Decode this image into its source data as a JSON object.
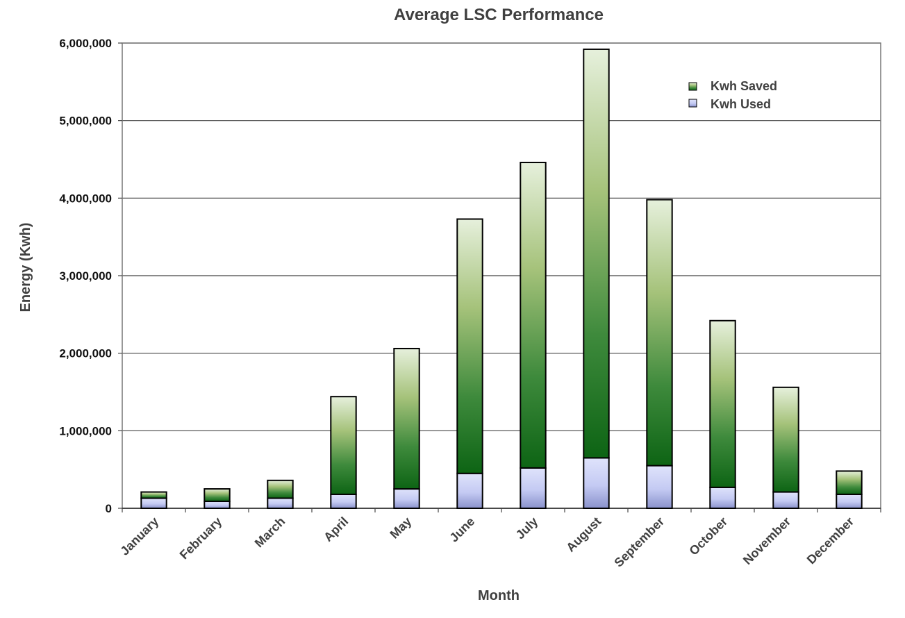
{
  "chart_data": {
    "type": "bar",
    "stacked": true,
    "title": "Average LSC Performance",
    "xlabel": "Month",
    "ylabel": "Energy (Kwh)",
    "ylim": [
      0,
      6000000
    ],
    "yticks": [
      0,
      1000000,
      2000000,
      3000000,
      4000000,
      5000000,
      6000000
    ],
    "ytick_labels": [
      "0",
      "1,000,000",
      "2,000,000",
      "3,000,000",
      "4,000,000",
      "5,000,000",
      "6,000,000"
    ],
    "grid": "horizontal",
    "legend_position": "top-right",
    "categories": [
      "January",
      "February",
      "March",
      "April",
      "May",
      "June",
      "July",
      "August",
      "September",
      "October",
      "November",
      "December"
    ],
    "series": [
      {
        "name": "Kwh Used",
        "color": "#c8cdf5",
        "values": [
          130000,
          90000,
          130000,
          180000,
          250000,
          450000,
          520000,
          650000,
          550000,
          270000,
          210000,
          180000
        ]
      },
      {
        "name": "Kwh Saved",
        "color": "#2e8b2e",
        "values": [
          80000,
          160000,
          230000,
          1260000,
          1810000,
          3280000,
          3940000,
          5270000,
          3430000,
          2150000,
          1350000,
          300000
        ]
      }
    ],
    "legend": [
      {
        "name": "Kwh Saved",
        "color": "#2e8b2e"
      },
      {
        "name": "Kwh Used",
        "color": "#c8cdf5"
      }
    ]
  }
}
